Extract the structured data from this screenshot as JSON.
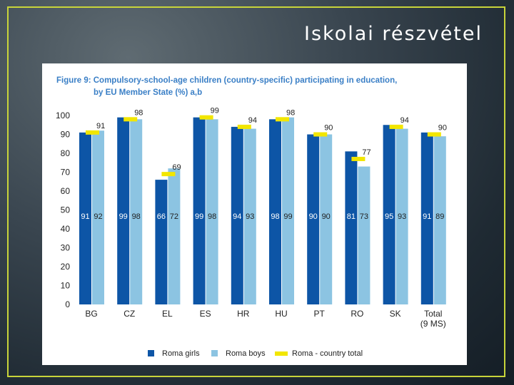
{
  "slide": {
    "title": "Iskolai részvétel"
  },
  "colors": {
    "girls": "#0d55a6",
    "boys": "#8cc4e2",
    "total": "#f2e600",
    "title_blue": "#3a7fc6"
  },
  "chart_data": {
    "type": "bar",
    "title_line1": "Figure 9:   Compulsory-school-age children (country-specific) participating in education,",
    "title_line2": "by EU Member State (%) a,b",
    "categories": [
      "BG",
      "CZ",
      "EL",
      "ES",
      "HR",
      "HU",
      "PT",
      "RO",
      "SK",
      "Total"
    ],
    "category_sublabels": [
      "",
      "",
      "",
      "",
      "",
      "",
      "",
      "",
      "",
      "(9 MS)"
    ],
    "series": [
      {
        "name": "Roma girls",
        "values": [
          91,
          99,
          66,
          99,
          94,
          98,
          90,
          81,
          95,
          91
        ]
      },
      {
        "name": "Roma boys",
        "values": [
          92,
          98,
          72,
          98,
          93,
          99,
          90,
          73,
          93,
          89
        ]
      },
      {
        "name": "Roma - country total",
        "values": [
          91,
          98,
          69,
          99,
          94,
          98,
          90,
          77,
          94,
          90
        ]
      }
    ],
    "ylim": [
      0,
      100
    ],
    "yticks": [
      "0",
      "10",
      "20",
      "30",
      "40",
      "50",
      "60",
      "70",
      "80",
      "90",
      "100"
    ],
    "legend_position": "bottom",
    "grid": false
  }
}
